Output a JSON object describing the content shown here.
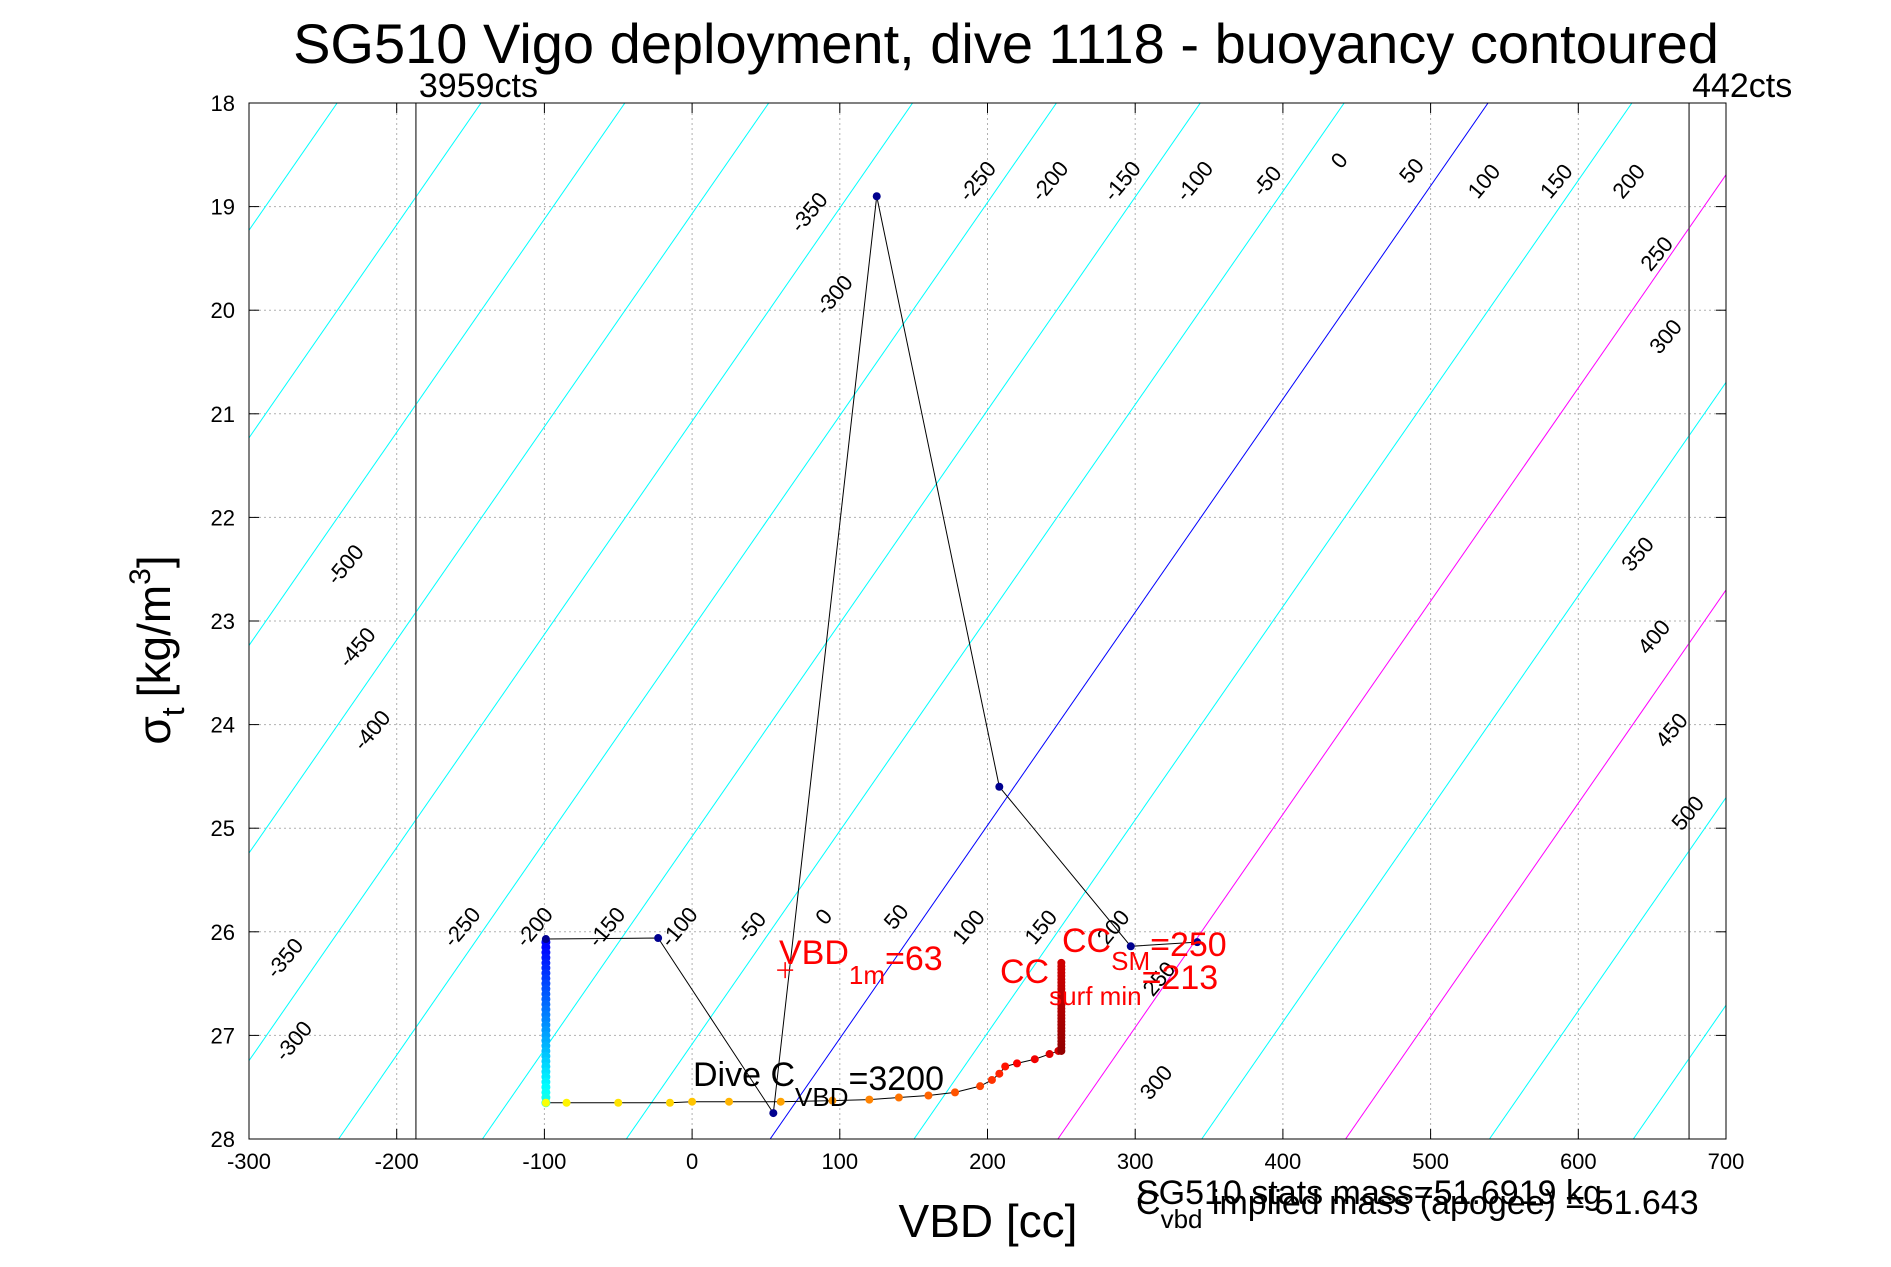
{
  "chart_data": {
    "type": "scatter",
    "title": "SG510 Vigo deployment, dive 1118 - buoyancy contoured",
    "xlabel": "VBD [cc]",
    "ylabel_main": "σ",
    "ylabel_sub": "t",
    "ylabel_unit": "[kg/m",
    "ylabel_sup": "3",
    "ylabel_close": "]",
    "xlim": [
      -300,
      700
    ],
    "ylim": [
      18,
      28
    ],
    "y_reversed": true,
    "grid": true,
    "xticks": [
      -300,
      -200,
      -100,
      0,
      100,
      200,
      300,
      400,
      500,
      600,
      700
    ],
    "yticks": [
      18,
      19,
      20,
      21,
      22,
      23,
      24,
      25,
      26,
      27,
      28
    ],
    "vertical_limits": [
      {
        "x": -187,
        "label": "3959cts"
      },
      {
        "x": 675,
        "label": "442cts"
      }
    ],
    "contours": {
      "color": "#00ffff",
      "zero_color": "#0000ff",
      "positive_color": "#ff00ff",
      "slope_cc_per_sigma": 97.4,
      "zero_line": [
        [
          65,
          27.75
        ],
        [
          500,
          18.8
        ]
      ],
      "positive_levels": [
        100,
        200
      ],
      "labels": [
        {
          "text": "-350",
          "x": 83,
          "y": 19.1
        },
        {
          "text": "-300",
          "x": 100,
          "y": 19.9
        },
        {
          "text": "-250",
          "x": 197,
          "y": 18.8
        },
        {
          "text": "-200",
          "x": 246,
          "y": 18.8
        },
        {
          "text": "-150",
          "x": 295,
          "y": 18.8
        },
        {
          "text": "-100",
          "x": 344,
          "y": 18.8
        },
        {
          "text": "-50",
          "x": 393,
          "y": 18.8
        },
        {
          "text": "0",
          "x": 442,
          "y": 18.6
        },
        {
          "text": "50",
          "x": 491,
          "y": 18.7
        },
        {
          "text": "100",
          "x": 540,
          "y": 18.8
        },
        {
          "text": "150",
          "x": 589,
          "y": 18.8
        },
        {
          "text": "200",
          "x": 638,
          "y": 18.8
        },
        {
          "text": "250",
          "x": 657,
          "y": 19.5
        },
        {
          "text": "300",
          "x": 663,
          "y": 20.3
        },
        {
          "text": "350",
          "x": 644,
          "y": 22.4
        },
        {
          "text": "400",
          "x": 655,
          "y": 23.2
        },
        {
          "text": "450",
          "x": 667,
          "y": 24.1
        },
        {
          "text": "500",
          "x": 678,
          "y": 24.9
        },
        {
          "text": "-500",
          "x": -231,
          "y": 22.5
        },
        {
          "text": "-450",
          "x": -223,
          "y": 23.3
        },
        {
          "text": "-400",
          "x": -213,
          "y": 24.1
        },
        {
          "text": "-350",
          "x": -272,
          "y": 26.3
        },
        {
          "text": "-300",
          "x": -266,
          "y": 27.1
        },
        {
          "text": "-250",
          "x": -152,
          "y": 26.0
        },
        {
          "text": "-200",
          "x": -103,
          "y": 26.0
        },
        {
          "text": "-150",
          "x": -54,
          "y": 26.0
        },
        {
          "text": "-100",
          "x": -5,
          "y": 26.0
        },
        {
          "text": "-50",
          "x": 44,
          "y": 26.0
        },
        {
          "text": "0",
          "x": 93,
          "y": 25.9
        },
        {
          "text": "50",
          "x": 142,
          "y": 25.9
        },
        {
          "text": "100",
          "x": 191,
          "y": 26.0
        },
        {
          "text": "150",
          "x": 240,
          "y": 26.0
        },
        {
          "text": "200",
          "x": 289,
          "y": 26.0
        },
        {
          "text": "250",
          "x": 320,
          "y": 26.5
        },
        {
          "text": "300",
          "x": 318,
          "y": 27.5
        }
      ]
    },
    "sparse_track": [
      [
        -99,
        26.07
      ],
      [
        -23,
        26.06
      ],
      [
        55,
        27.75
      ],
      [
        125,
        18.9
      ],
      [
        208,
        24.6
      ],
      [
        297,
        26.14
      ],
      [
        342,
        26.1
      ]
    ],
    "dense_points": [
      {
        "x": -99,
        "y_start": 26.1,
        "y_end": 27.65,
        "count": 32
      },
      {
        "x": 250,
        "y_start": 26.3,
        "y_end": 27.15,
        "count": 28
      }
    ],
    "bottom_track": [
      [
        -99,
        27.65
      ],
      [
        -85,
        27.65
      ],
      [
        -50,
        27.65
      ],
      [
        -15,
        27.65
      ],
      [
        0,
        27.64
      ],
      [
        25,
        27.64
      ],
      [
        60,
        27.64
      ],
      [
        95,
        27.63
      ],
      [
        120,
        27.62
      ],
      [
        140,
        27.6
      ],
      [
        160,
        27.58
      ],
      [
        178,
        27.55
      ],
      [
        195,
        27.49
      ],
      [
        203,
        27.43
      ],
      [
        208,
        27.37
      ],
      [
        212,
        27.3
      ],
      [
        220,
        27.27
      ],
      [
        232,
        27.23
      ],
      [
        242,
        27.18
      ],
      [
        248,
        27.15
      ]
    ],
    "markers": [
      {
        "x": 63,
        "y": 26.37,
        "color": "#ff0000",
        "symbol": "+"
      }
    ],
    "annotations": {
      "vbd_1m": {
        "main": "VBD",
        "sub": "1m",
        "value": "=63",
        "color": "#ff0000"
      },
      "cc_sm": {
        "main": "CC",
        "sub": "SM",
        "value": "=250",
        "color": "#ff0000"
      },
      "cc_surf": {
        "main": "CC",
        "sub": "surf min",
        "value": "=213",
        "color": "#ff0000"
      },
      "dive_c": {
        "main": "Dive C",
        "sub": "VBD",
        "value": "=3200",
        "color": "#000000"
      }
    },
    "footer": {
      "line1": "SG510 stats mass=51.6919 kg",
      "line2_main": "C",
      "line2_sub": "vbd",
      "line2_rest": " implied mass (apogee) = 51.643"
    }
  }
}
